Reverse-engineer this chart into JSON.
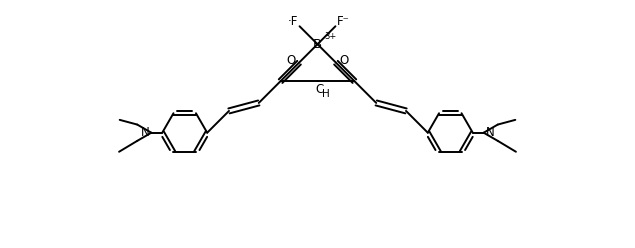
{
  "bg_color": "#ffffff",
  "line_color": "#000000",
  "line_width": 1.4,
  "font_size": 8.5,
  "fig_width": 6.35,
  "fig_height": 2.48,
  "dpi": 100,
  "xlim": [
    -6.5,
    6.5
  ],
  "ylim": [
    -3.8,
    3.0
  ]
}
